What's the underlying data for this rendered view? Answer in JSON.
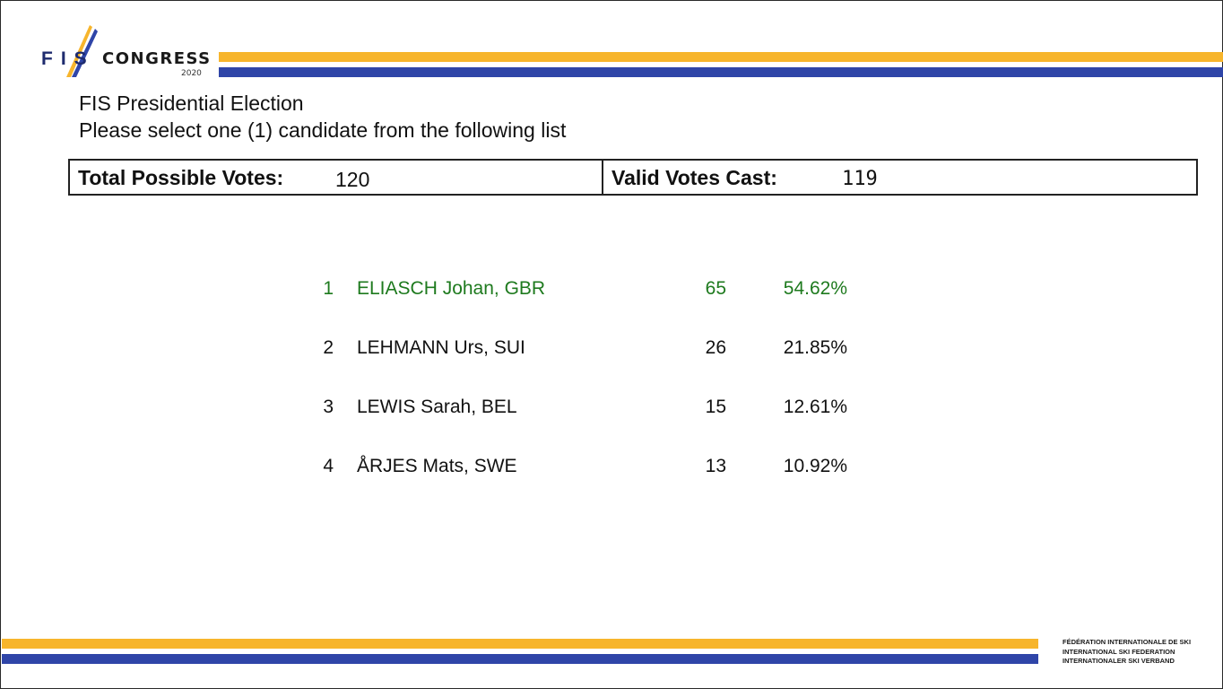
{
  "logo": {
    "fis": "FIS",
    "congress": "CONGRESS",
    "year": "2020"
  },
  "colors": {
    "stripe_yellow": "#f7b52c",
    "stripe_blue": "#2f45a8",
    "winner_green": "#1e7a1e"
  },
  "heading": {
    "title": "FIS Presidential Election",
    "instruction": "Please select one (1) candidate from the following list"
  },
  "votes": {
    "total_label": "Total Possible Votes:",
    "total_value": "120",
    "valid_label": "Valid Votes Cast:",
    "valid_value": "119"
  },
  "results": [
    {
      "rank": "1",
      "name": "ELIASCH Johan, GBR",
      "votes": "65",
      "percent": "54.62%"
    },
    {
      "rank": "2",
      "name": "LEHMANN Urs, SUI",
      "votes": "26",
      "percent": "21.85%"
    },
    {
      "rank": "3",
      "name": "LEWIS Sarah, BEL",
      "votes": "15",
      "percent": "12.61%"
    },
    {
      "rank": "4",
      "name": "ÅRJES Mats, SWE",
      "votes": "13",
      "percent": "10.92%"
    }
  ],
  "federation": {
    "line1": "FÉDÉRATION INTERNATIONALE DE SKI",
    "line2": "INTERNATIONAL SKI FEDERATION",
    "line3": "INTERNATIONALER SKI VERBAND"
  }
}
